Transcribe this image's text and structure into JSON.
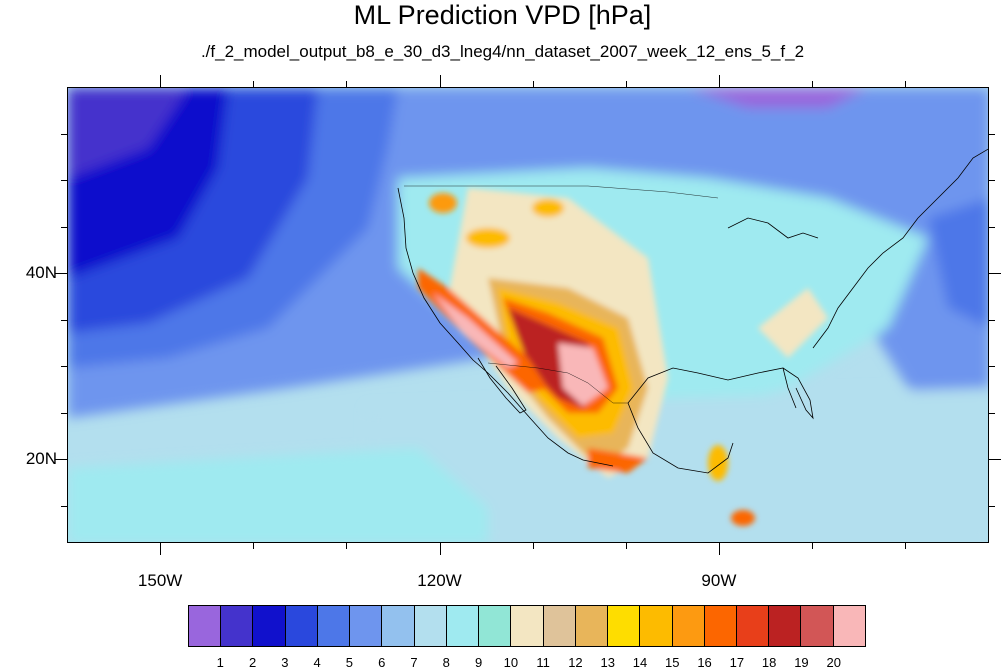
{
  "title": "ML Prediction VPD [hPa]",
  "subtitle": "./f_2_model_output_b8_e_30_d3_lneg4/nn_dataset_2007_week_12_ens_5_f_2",
  "map": {
    "lon_range": [
      -160,
      -61
    ],
    "lat_range": [
      11,
      60
    ],
    "lat_labels": [
      {
        "label": "40N",
        "lat": 40
      },
      {
        "label": "20N",
        "lat": 20
      }
    ],
    "lon_labels": [
      {
        "label": "150W",
        "lon": -150
      },
      {
        "label": "120W",
        "lon": -120
      },
      {
        "label": "90W",
        "lon": -90
      }
    ],
    "minor_lon_ticks": [
      -150,
      -140,
      -130,
      -120,
      -110,
      -100,
      -90,
      -80,
      -70
    ],
    "minor_lat_ticks": [
      15,
      20,
      25,
      30,
      35,
      40,
      45,
      50,
      55
    ]
  },
  "colorbar": {
    "labels": [
      "1",
      "2",
      "3",
      "4",
      "5",
      "6",
      "7",
      "8",
      "9",
      "10",
      "11",
      "12",
      "13",
      "14",
      "15",
      "16",
      "17",
      "18",
      "19",
      "20"
    ],
    "colors": [
      "#9966dd",
      "#4433cc",
      "#1111cc",
      "#2a48dd",
      "#4d77e8",
      "#6e95ee",
      "#93c1ee",
      "#b3dfee",
      "#9feaf0",
      "#91e6d6",
      "#f3e6c2",
      "#dfc39a",
      "#e8b55a",
      "#fedd00",
      "#fdbb00",
      "#fd9a11",
      "#fc6600",
      "#e83f1a",
      "#bb2222",
      "#d25656",
      "#f9b7b8"
    ]
  }
}
